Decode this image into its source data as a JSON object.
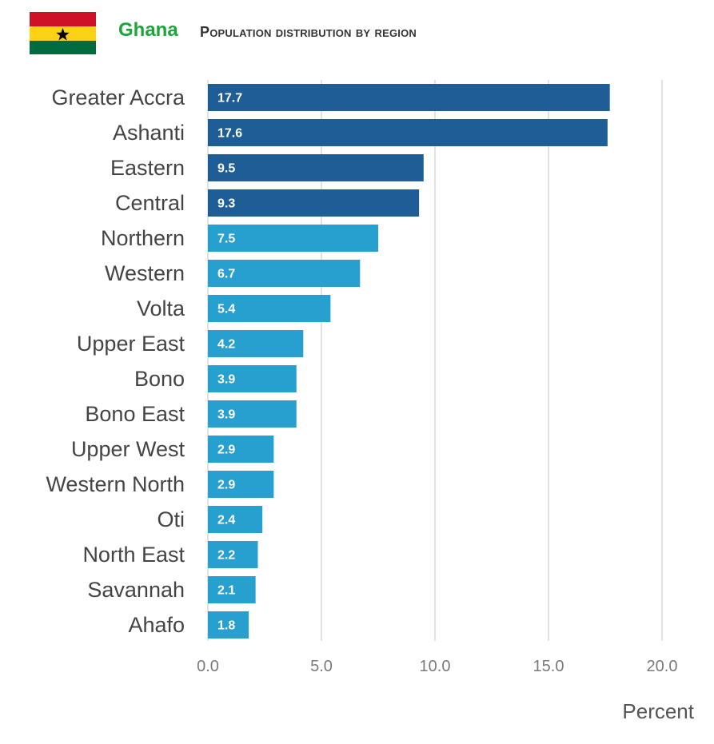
{
  "header": {
    "country": "Ghana",
    "subtitle": "Population distribution by region"
  },
  "flag": {
    "colors": [
      "#ce1126",
      "#fcd116",
      "#006b3f"
    ],
    "star_color": "#000000",
    "icon": "ghana-flag-icon"
  },
  "colors": {
    "top_bars": "#1f5d96",
    "other_bars": "#27a0d0",
    "grid": "#d9d9d9"
  },
  "chart_data": {
    "type": "bar",
    "orientation": "horizontal",
    "categories": [
      "Greater Accra",
      "Ashanti",
      "Eastern",
      "Central",
      "Northern",
      "Western",
      "Volta",
      "Upper East",
      "Bono",
      "Bono East",
      "Upper West",
      "Western North",
      "Oti",
      "North East",
      "Savannah",
      "Ahafo"
    ],
    "values": [
      17.7,
      17.6,
      9.5,
      9.3,
      7.5,
      6.7,
      5.4,
      4.2,
      3.9,
      3.9,
      2.9,
      2.9,
      2.4,
      2.2,
      2.1,
      1.8
    ],
    "value_labels": [
      "17.7",
      "17.6",
      "9.5",
      "9.3",
      "7.5",
      "6.7",
      "5.4",
      "4.2",
      "3.9",
      "3.9",
      "2.9",
      "2.9",
      "2.4",
      "2.2",
      "2.1",
      "1.8"
    ],
    "highlight_count": 4,
    "xlabel": "Percent",
    "xlim": [
      0,
      20
    ],
    "xticks": [
      0,
      5,
      10,
      15,
      20
    ],
    "xtick_labels": [
      "0.0",
      "5.0",
      "10.0",
      "15.0",
      "20.0"
    ],
    "grid": "vertical"
  }
}
